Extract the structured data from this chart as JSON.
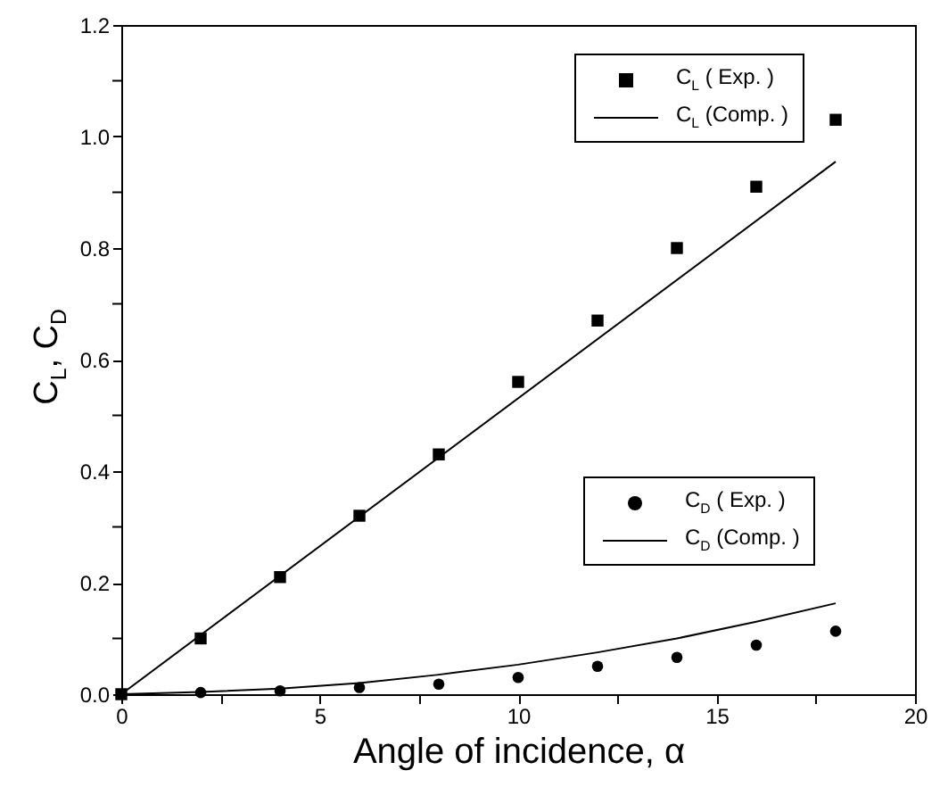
{
  "chart_data": {
    "type": "scatter",
    "xlabel": "Angle of incidence, α",
    "ylabel": "C$_{L}$, C$_{D}$",
    "x": [
      0,
      2,
      4,
      6,
      8,
      10,
      12,
      14,
      16,
      18
    ],
    "series": [
      {
        "name": "C$_{L}$ ( Exp. )",
        "marker": "square",
        "color": "#000000",
        "values": [
          0,
          0.1,
          0.21,
          0.32,
          0.43,
          0.56,
          0.67,
          0.8,
          0.91,
          1.03
        ]
      },
      {
        "name": "C$_{L}$ (Comp. )",
        "type": "line",
        "marker": "none",
        "color": "#000000",
        "x": [
          0,
          18
        ],
        "values": [
          0,
          0.955
        ]
      },
      {
        "name": "C$_{D}$ ( Exp. )",
        "marker": "circle",
        "color": "#000000",
        "values": [
          null,
          0.003,
          0.006,
          0.012,
          0.018,
          0.03,
          0.05,
          0.066,
          0.088,
          0.113
        ]
      },
      {
        "name": "C$_{D}$ (Comp. )",
        "type": "line",
        "marker": "none",
        "color": "#000000",
        "values": [
          0,
          0.004,
          0.01,
          0.02,
          0.035,
          0.053,
          0.075,
          0.1,
          0.13,
          0.163
        ]
      }
    ],
    "xlim": [
      0,
      20
    ],
    "ylim": [
      0,
      1.2
    ],
    "xticks": [
      0,
      {
        "value": 2.5,
        "label": null
      },
      5,
      {
        "value": 7.5,
        "label": null
      },
      10,
      {
        "value": 12.5,
        "label": null
      },
      15,
      {
        "value": 17.5,
        "label": null
      },
      20
    ],
    "yticks": [
      {
        "value": 0,
        "label": "0.0"
      },
      {
        "value": 0.1,
        "label": null
      },
      {
        "value": 0.2,
        "label": "0.2"
      },
      {
        "value": 0.3,
        "label": null
      },
      {
        "value": 0.4,
        "label": "0.4"
      },
      {
        "value": 0.5,
        "label": null
      },
      {
        "value": 0.6,
        "label": "0.6"
      },
      {
        "value": 0.7,
        "label": null
      },
      {
        "value": 0.8,
        "label": "0.8"
      },
      {
        "value": 0.9,
        "label": null
      },
      {
        "value": 1.0,
        "label": "1.0"
      },
      {
        "value": 1.1,
        "label": null
      },
      {
        "value": 1.2,
        "label": "1.2"
      }
    ],
    "legend": "right",
    "grid": false
  }
}
